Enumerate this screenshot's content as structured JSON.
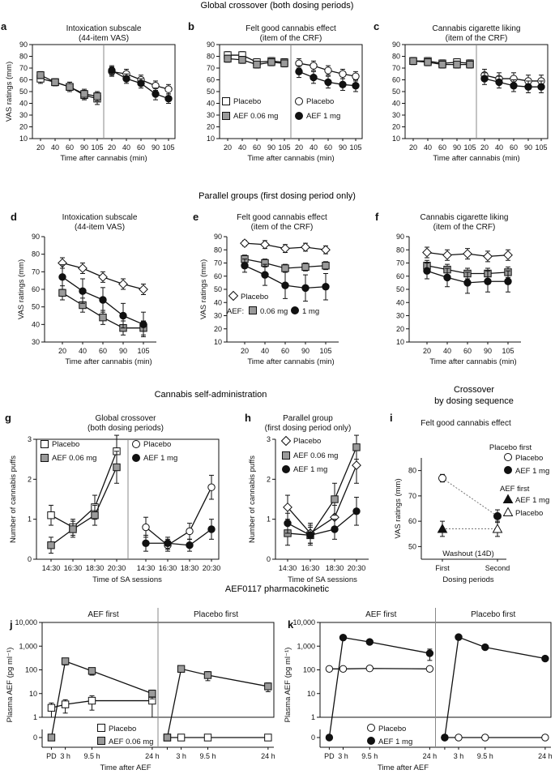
{
  "section_titles": {
    "global": "Global crossover (both dosing periods)",
    "parallel": "Parallel groups (first dosing period only)",
    "selfadmin": "Cannabis self-administration",
    "crossover_seq_1": "Crossover",
    "crossover_seq_2": "by dosing sequence",
    "pk": "AEF0117 pharmacokinetic"
  },
  "colors": {
    "gray": "#9a9a9a",
    "black": "#111111",
    "white": "#ffffff",
    "dotted": "#777777"
  },
  "chart_data": [
    {
      "id": "a",
      "type": "line",
      "panel_letter": "a",
      "title_lines": [
        "Intoxication subscale",
        "(44-item VAS)"
      ],
      "ylabel": "VAS ratings (mm)",
      "xlabel": "Time after cannabis (min)",
      "ylim": [
        10,
        90
      ],
      "yticks": [
        10,
        20,
        30,
        40,
        50,
        60,
        70,
        80,
        90
      ],
      "categories": [
        "20",
        "40",
        "60",
        "90",
        "105"
      ],
      "series": [
        {
          "name": "Placebo",
          "values": [
            61,
            58,
            54,
            47,
            44
          ],
          "err": [
            4,
            3,
            4,
            4,
            5
          ]
        },
        {
          "name": "AEF 0.06 mg",
          "values": [
            64,
            58,
            54,
            48,
            46
          ],
          "err": [
            3,
            3,
            4,
            4,
            4
          ]
        },
        {
          "name": "Placebo",
          "values": [
            67,
            65,
            60,
            55,
            52
          ],
          "err": [
            4,
            4,
            4,
            4,
            4
          ]
        },
        {
          "name": "AEF 1 mg",
          "values": [
            68,
            61,
            57,
            48,
            44
          ],
          "err": [
            4,
            4,
            4,
            5,
            4
          ]
        }
      ]
    },
    {
      "id": "b",
      "type": "line",
      "panel_letter": "b",
      "title_lines": [
        "Felt good cannabis effect",
        "(item of the CRF)"
      ],
      "ylabel": "",
      "xlabel": "Time after cannabis (min)",
      "ylim": [
        10,
        90
      ],
      "yticks": [
        10,
        20,
        30,
        40,
        50,
        60,
        70,
        80,
        90
      ],
      "categories": [
        "20",
        "40",
        "60",
        "90",
        "105"
      ],
      "series": [
        {
          "name": "Placebo",
          "values": [
            81,
            81,
            75,
            76,
            75
          ],
          "err": [
            3,
            3,
            3,
            3,
            3
          ]
        },
        {
          "name": "AEF 0.06 mg",
          "values": [
            78,
            77,
            73,
            75,
            74
          ],
          "err": [
            3,
            3,
            3,
            3,
            3
          ]
        },
        {
          "name": "Placebo",
          "values": [
            74,
            72,
            68,
            65,
            63
          ],
          "err": [
            4,
            4,
            4,
            4,
            4
          ]
        },
        {
          "name": "AEF 1 mg",
          "values": [
            67,
            62,
            58,
            56,
            55
          ],
          "err": [
            5,
            5,
            5,
            5,
            5
          ]
        }
      ],
      "legend": [
        {
          "label": "Placebo",
          "marker": "square-white"
        },
        {
          "label": "AEF 0.06 mg",
          "marker": "square-gray"
        },
        {
          "label": "Placebo",
          "marker": "circle-white"
        },
        {
          "label": "AEF 1 mg",
          "marker": "circle-black"
        }
      ]
    },
    {
      "id": "c",
      "type": "line",
      "panel_letter": "c",
      "title_lines": [
        "Cannabis cigarette liking",
        "(item of the CRF)"
      ],
      "ylabel": "",
      "xlabel": "Time after cannabis (min)",
      "ylim": [
        10,
        90
      ],
      "yticks": [
        10,
        20,
        30,
        40,
        50,
        60,
        70,
        80,
        90
      ],
      "categories": [
        "20",
        "40",
        "60",
        "90",
        "105"
      ],
      "series": [
        {
          "name": "Placebo",
          "values": [
            76,
            76,
            74,
            75,
            74
          ],
          "err": [
            3,
            3,
            3,
            3,
            3
          ]
        },
        {
          "name": "AEF 0.06 mg",
          "values": [
            76,
            75,
            73,
            73,
            73
          ],
          "err": [
            3,
            3,
            3,
            3,
            3
          ]
        },
        {
          "name": "Placebo",
          "values": [
            64,
            61,
            61,
            59,
            59
          ],
          "err": [
            5,
            5,
            5,
            5,
            5
          ]
        },
        {
          "name": "AEF 1 mg",
          "values": [
            61,
            58,
            55,
            54,
            54
          ],
          "err": [
            5,
            5,
            5,
            5,
            5
          ]
        }
      ]
    },
    {
      "id": "d",
      "type": "line",
      "panel_letter": "d",
      "title_lines": [
        "Intoxication subscale",
        "(44-item VAS)"
      ],
      "ylabel": "VAS ratings (mm)",
      "xlabel": "Time after cannabis (min)",
      "ylim": [
        30,
        90
      ],
      "yticks": [
        30,
        40,
        50,
        60,
        70,
        80,
        90
      ],
      "categories": [
        "20",
        "40",
        "60",
        "90",
        "105"
      ],
      "series": [
        {
          "name": "Placebo",
          "values": [
            75,
            72,
            67,
            63,
            60
          ],
          "err": [
            3,
            3,
            3,
            3,
            3
          ]
        },
        {
          "name": "AEF 0.06 mg",
          "values": [
            58,
            51,
            44,
            38,
            38
          ],
          "err": [
            4,
            4,
            4,
            4,
            4
          ]
        },
        {
          "name": "AEF 1 mg",
          "values": [
            67,
            59,
            54,
            45,
            40
          ],
          "err": [
            7,
            7,
            7,
            7,
            7
          ]
        }
      ]
    },
    {
      "id": "e",
      "type": "line",
      "panel_letter": "e",
      "title_lines": [
        "Felt good cannabis effect",
        "(item of the CRF)"
      ],
      "ylabel": "VAS ratings (mm)",
      "xlabel": "Time after cannabis (min)",
      "ylim": [
        10,
        90
      ],
      "yticks": [
        10,
        20,
        30,
        40,
        50,
        60,
        70,
        80,
        90
      ],
      "categories": [
        "20",
        "40",
        "60",
        "90",
        "105"
      ],
      "series": [
        {
          "name": "Placebo",
          "values": [
            85,
            84,
            81,
            82,
            80
          ],
          "err": [
            2,
            3,
            3,
            3,
            3
          ]
        },
        {
          "name": "0.06 mg",
          "values": [
            73,
            70,
            66,
            67,
            68
          ],
          "err": [
            3,
            3,
            3,
            3,
            3
          ]
        },
        {
          "name": "1 mg",
          "values": [
            68,
            61,
            53,
            51,
            52
          ],
          "err": [
            5,
            8,
            10,
            10,
            10
          ]
        }
      ],
      "legend": [
        {
          "label": "Placebo",
          "marker": "diamond-white"
        },
        {
          "label": "0.06 mg",
          "marker": "square-gray"
        },
        {
          "label": "1 mg",
          "marker": "circle-black"
        }
      ],
      "legend_prefix": "AEF:"
    },
    {
      "id": "f",
      "type": "line",
      "panel_letter": "f",
      "title_lines": [
        "Cannabis cigarette liking",
        "(item of the CRF)"
      ],
      "ylabel": "",
      "xlabel": "Time after cannabis (min)",
      "ylim": [
        10,
        90
      ],
      "yticks": [
        10,
        20,
        30,
        40,
        50,
        60,
        70,
        80,
        90
      ],
      "categories": [
        "20",
        "40",
        "60",
        "90",
        "105"
      ],
      "series": [
        {
          "name": "Placebo",
          "values": [
            78,
            76,
            77,
            75,
            76
          ],
          "err": [
            4,
            4,
            4,
            4,
            4
          ]
        },
        {
          "name": "AEF 0.06 mg",
          "values": [
            68,
            65,
            62,
            62,
            63
          ],
          "err": [
            4,
            4,
            4,
            4,
            4
          ]
        },
        {
          "name": "AEF 1 mg",
          "values": [
            64,
            59,
            55,
            56,
            56
          ],
          "err": [
            6,
            7,
            8,
            8,
            8
          ]
        }
      ]
    },
    {
      "id": "g",
      "type": "line",
      "panel_letter": "g",
      "title_lines": [
        "Global crossover",
        "(both dosing periods)"
      ],
      "ylabel": "Number of cannabis puffs",
      "xlabel": "Time of SA sessions",
      "ylim": [
        0,
        3
      ],
      "yticks": [
        0,
        1,
        2,
        3
      ],
      "categories": [
        "14:30",
        "16:30",
        "18:30",
        "20:30"
      ],
      "series": [
        {
          "name": "Placebo",
          "values": [
            1.1,
            0.8,
            1.3,
            2.7
          ],
          "err": [
            0.25,
            0.2,
            0.3,
            0.4
          ]
        },
        {
          "name": "AEF 0.06 mg",
          "values": [
            0.35,
            0.75,
            1.1,
            2.3
          ],
          "err": [
            0.2,
            0.2,
            0.25,
            0.4
          ]
        },
        {
          "name": "Placebo",
          "values": [
            0.8,
            0.35,
            0.7,
            1.8
          ],
          "err": [
            0.25,
            0.15,
            0.2,
            0.3
          ]
        },
        {
          "name": "AEF 1 mg",
          "values": [
            0.4,
            0.4,
            0.35,
            0.75
          ],
          "err": [
            0.2,
            0.15,
            0.15,
            0.25
          ]
        }
      ],
      "legend": [
        {
          "label": "Placebo",
          "marker": "square-white"
        },
        {
          "label": "AEF 0.06 mg",
          "marker": "square-gray"
        },
        {
          "label": "Placebo",
          "marker": "circle-white"
        },
        {
          "label": "AEF 1 mg",
          "marker": "circle-black"
        }
      ]
    },
    {
      "id": "h",
      "type": "line",
      "panel_letter": "h",
      "title_lines": [
        "Parallel group",
        "(first dosing period only)"
      ],
      "ylabel": "Number of cannabis puffs",
      "xlabel": "Time of SA sessions",
      "ylim": [
        0,
        3
      ],
      "yticks": [
        0,
        1,
        2,
        3
      ],
      "categories": [
        "14:30",
        "16:30",
        "18:30",
        "20:30"
      ],
      "series": [
        {
          "name": "Placebo",
          "values": [
            1.3,
            0.65,
            1.05,
            2.35
          ],
          "err": [
            0.3,
            0.25,
            0.3,
            0.45
          ]
        },
        {
          "name": "AEF 0.06 mg",
          "values": [
            0.65,
            0.6,
            1.5,
            2.8
          ],
          "err": [
            0.3,
            0.25,
            0.4,
            0.3
          ]
        },
        {
          "name": "AEF 1 mg",
          "values": [
            0.9,
            0.6,
            0.75,
            1.2
          ],
          "err": [
            0.25,
            0.2,
            0.25,
            0.35
          ]
        }
      ],
      "legend": [
        {
          "label": "Placebo",
          "marker": "diamond-white"
        },
        {
          "label": "AEF 0.06 mg",
          "marker": "square-gray"
        },
        {
          "label": "AEF 1 mg",
          "marker": "circle-black"
        }
      ]
    },
    {
      "id": "i",
      "type": "scatter",
      "panel_letter": "i",
      "title_lines": [
        "Felt good cannabis effect"
      ],
      "ylabel": "VAS ratings (mm)",
      "xlabel": "Dosing periods",
      "ylim": [
        45,
        85
      ],
      "yticks": [
        50,
        60,
        70,
        80
      ],
      "categories": [
        "First",
        "Second"
      ],
      "annotation": "Washout (14D)",
      "series": [
        {
          "name": "Placebo first: Placebo",
          "x": "First",
          "value": 77,
          "err": 1.5,
          "marker": "circle-white"
        },
        {
          "name": "Placebo first: AEF 1 mg",
          "x": "Second",
          "value": 62,
          "err": 2.5,
          "marker": "circle-black"
        },
        {
          "name": "AEF first: AEF 1 mg",
          "x": "First",
          "value": 57,
          "err": 3,
          "marker": "triangle-black"
        },
        {
          "name": "AEF first: Placebo",
          "x": "Second",
          "value": 57,
          "err": 3,
          "marker": "triangle-white"
        }
      ],
      "legend_groups": [
        {
          "title": "Placebo first",
          "items": [
            {
              "label": "Placebo",
              "marker": "circle-white"
            },
            {
              "label": "AEF 1 mg",
              "marker": "circle-black"
            }
          ]
        },
        {
          "title": "AEF first",
          "items": [
            {
              "label": "AEF 1 mg",
              "marker": "triangle-black"
            },
            {
              "label": "Placebo",
              "marker": "triangle-white"
            }
          ]
        }
      ]
    },
    {
      "id": "j",
      "type": "line",
      "panel_letter": "j",
      "subpanel_titles": [
        "AEF first",
        "Placebo first"
      ],
      "ylabel": "Plasma AEF (pg ml⁻¹)",
      "xlabel": "Time after AEF",
      "yscale": "log",
      "ylim": [
        0,
        10000
      ],
      "yticks": [
        "0",
        "1",
        "10",
        "100",
        "1,000",
        "10,000"
      ],
      "x_hours": [
        0,
        3,
        9.5,
        24
      ],
      "xticks": [
        "PD",
        "3 h",
        "9.5 h",
        "24 h"
      ],
      "series": [
        {
          "name": "Placebo",
          "group": "AEF first",
          "values": [
            2.5,
            3.5,
            5,
            5
          ],
          "err": [
            1.5,
            2,
            3,
            4
          ]
        },
        {
          "name": "AEF 0.06 mg",
          "group": "AEF first",
          "values": [
            0,
            230,
            90,
            10
          ],
          "err": [
            0,
            70,
            30,
            4
          ]
        },
        {
          "name": "Placebo",
          "group": "Placebo first",
          "values": [
            0,
            0,
            0,
            0
          ],
          "err": [
            0,
            0,
            0,
            0
          ]
        },
        {
          "name": "AEF 0.06 mg",
          "group": "Placebo first",
          "values": [
            0,
            110,
            60,
            20
          ],
          "err": [
            0,
            30,
            25,
            8
          ]
        }
      ],
      "legend": [
        {
          "label": "Placebo",
          "marker": "square-white"
        },
        {
          "label": "AEF 0.06 mg",
          "marker": "square-gray"
        }
      ]
    },
    {
      "id": "k",
      "type": "line",
      "panel_letter": "k",
      "subpanel_titles": [
        "AEF first",
        "Placebo first"
      ],
      "ylabel": "Plasma AEF (pg ml⁻¹)",
      "xlabel": "Time after AEF",
      "yscale": "log",
      "ylim": [
        0,
        10000
      ],
      "yticks": [
        "0",
        "1",
        "10",
        "100",
        "1,000",
        "10,000"
      ],
      "x_hours": [
        0,
        3,
        9.5,
        24
      ],
      "xticks": [
        "PD",
        "3 h",
        "9.5 h",
        "24 h"
      ],
      "series": [
        {
          "name": "Placebo",
          "group": "AEF first",
          "values": [
            110,
            110,
            115,
            110
          ],
          "err": [
            0,
            0,
            0,
            0
          ]
        },
        {
          "name": "AEF 1 mg",
          "group": "AEF first",
          "values": [
            0,
            2300,
            1500,
            500
          ],
          "err": [
            0,
            0,
            0,
            250
          ]
        },
        {
          "name": "Placebo",
          "group": "Placebo first",
          "values": [
            0,
            0,
            0,
            0
          ],
          "err": [
            0,
            0,
            0,
            0
          ]
        },
        {
          "name": "AEF 1 mg",
          "group": "Placebo first",
          "values": [
            0,
            2400,
            900,
            300
          ],
          "err": [
            0,
            0,
            0,
            0
          ]
        }
      ],
      "legend": [
        {
          "label": "Placebo",
          "marker": "circle-white"
        },
        {
          "label": "AEF 1 mg",
          "marker": "circle-black"
        }
      ]
    }
  ]
}
